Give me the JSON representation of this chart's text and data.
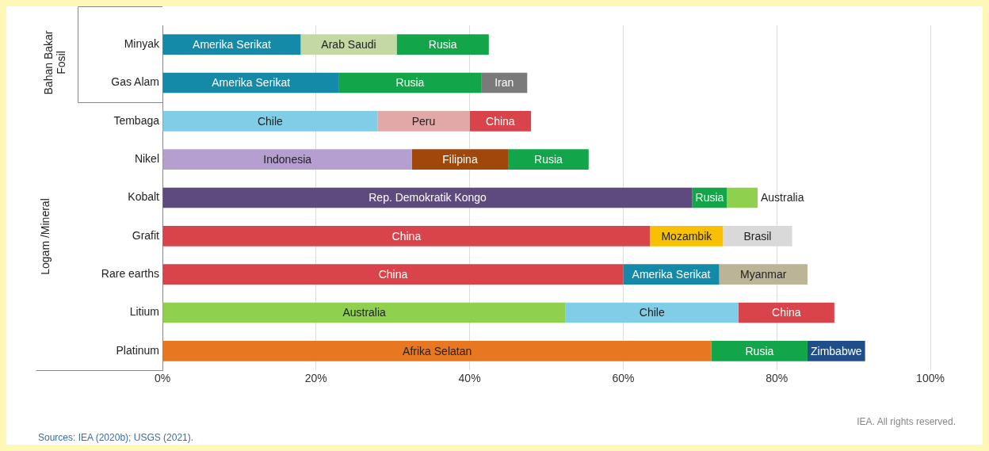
{
  "chart_data": {
    "type": "bar",
    "orientation": "horizontal",
    "stacked": true,
    "categories": [
      "Minyak",
      "Gas Alam",
      "Tembaga",
      "Nikel",
      "Kobalt",
      "Grafit",
      "Rare earths",
      "Litium",
      "Platinum"
    ],
    "series": [
      {
        "values": [
          18,
          23,
          28,
          32.5,
          69,
          63.5,
          60,
          52.5,
          71.5
        ],
        "colors": [
          "#148aa8",
          "#148aa8",
          "#7fcde6",
          "#b49fd0",
          "#5f4a80",
          "#d9444b",
          "#d9444b",
          "#8fd14f",
          "#e87721"
        ],
        "value_labels": [
          "Amerika Serikat",
          "Amerika Serikat",
          "Chile",
          "Indonesia",
          "Rep. Demokratik Kongo",
          "China",
          "China",
          "Australia",
          "Afrika Selatan"
        ]
      },
      {
        "values": [
          12.5,
          18.5,
          12,
          12.5,
          4.5,
          9.5,
          12.5,
          22.5,
          12.5
        ],
        "colors": [
          "#c4d8a4",
          "#13a54a",
          "#e2a8a8",
          "#a0480c",
          "#13a54a",
          "#f9c000",
          "#148aa8",
          "#7fcde6",
          "#13a54a"
        ],
        "value_labels": [
          "Arab Saudi",
          "Rusia",
          "Peru",
          "Filipina",
          "Rusia",
          "Mozambik",
          "Amerika Serikat",
          "Chile",
          "Rusia"
        ]
      },
      {
        "values": [
          12,
          6,
          8,
          10.5,
          4,
          9,
          11.5,
          12.5,
          7.5
        ],
        "colors": [
          "#13a54a",
          "#7a7a7a",
          "#d9444b",
          "#13a54a",
          "#8fd14f",
          "#d9d9d9",
          "#bbb496",
          "#d9444b",
          "#1f4e88"
        ],
        "value_labels": [
          "Rusia",
          "Iran",
          "China",
          "Rusia",
          "Australia",
          "Brasil",
          "Myanmar",
          "China",
          "Zimbabwe"
        ]
      }
    ],
    "xlim": [
      0,
      100
    ],
    "xticks": [
      {
        "value": 0,
        "label": "0%"
      },
      {
        "value": 20,
        "label": "20%"
      },
      {
        "value": 40,
        "label": "40%"
      },
      {
        "value": 60,
        "label": "60%"
      },
      {
        "value": 80,
        "label": "80%"
      },
      {
        "value": 100,
        "label": "100%"
      }
    ],
    "grid": "x",
    "legend": false,
    "annotations": [
      "Bahan Bakar Fosil",
      "Logam /Mineral",
      "IEA. All rights reserved.",
      "Sources: IEA (2020b); USGS (2021)."
    ]
  }
}
